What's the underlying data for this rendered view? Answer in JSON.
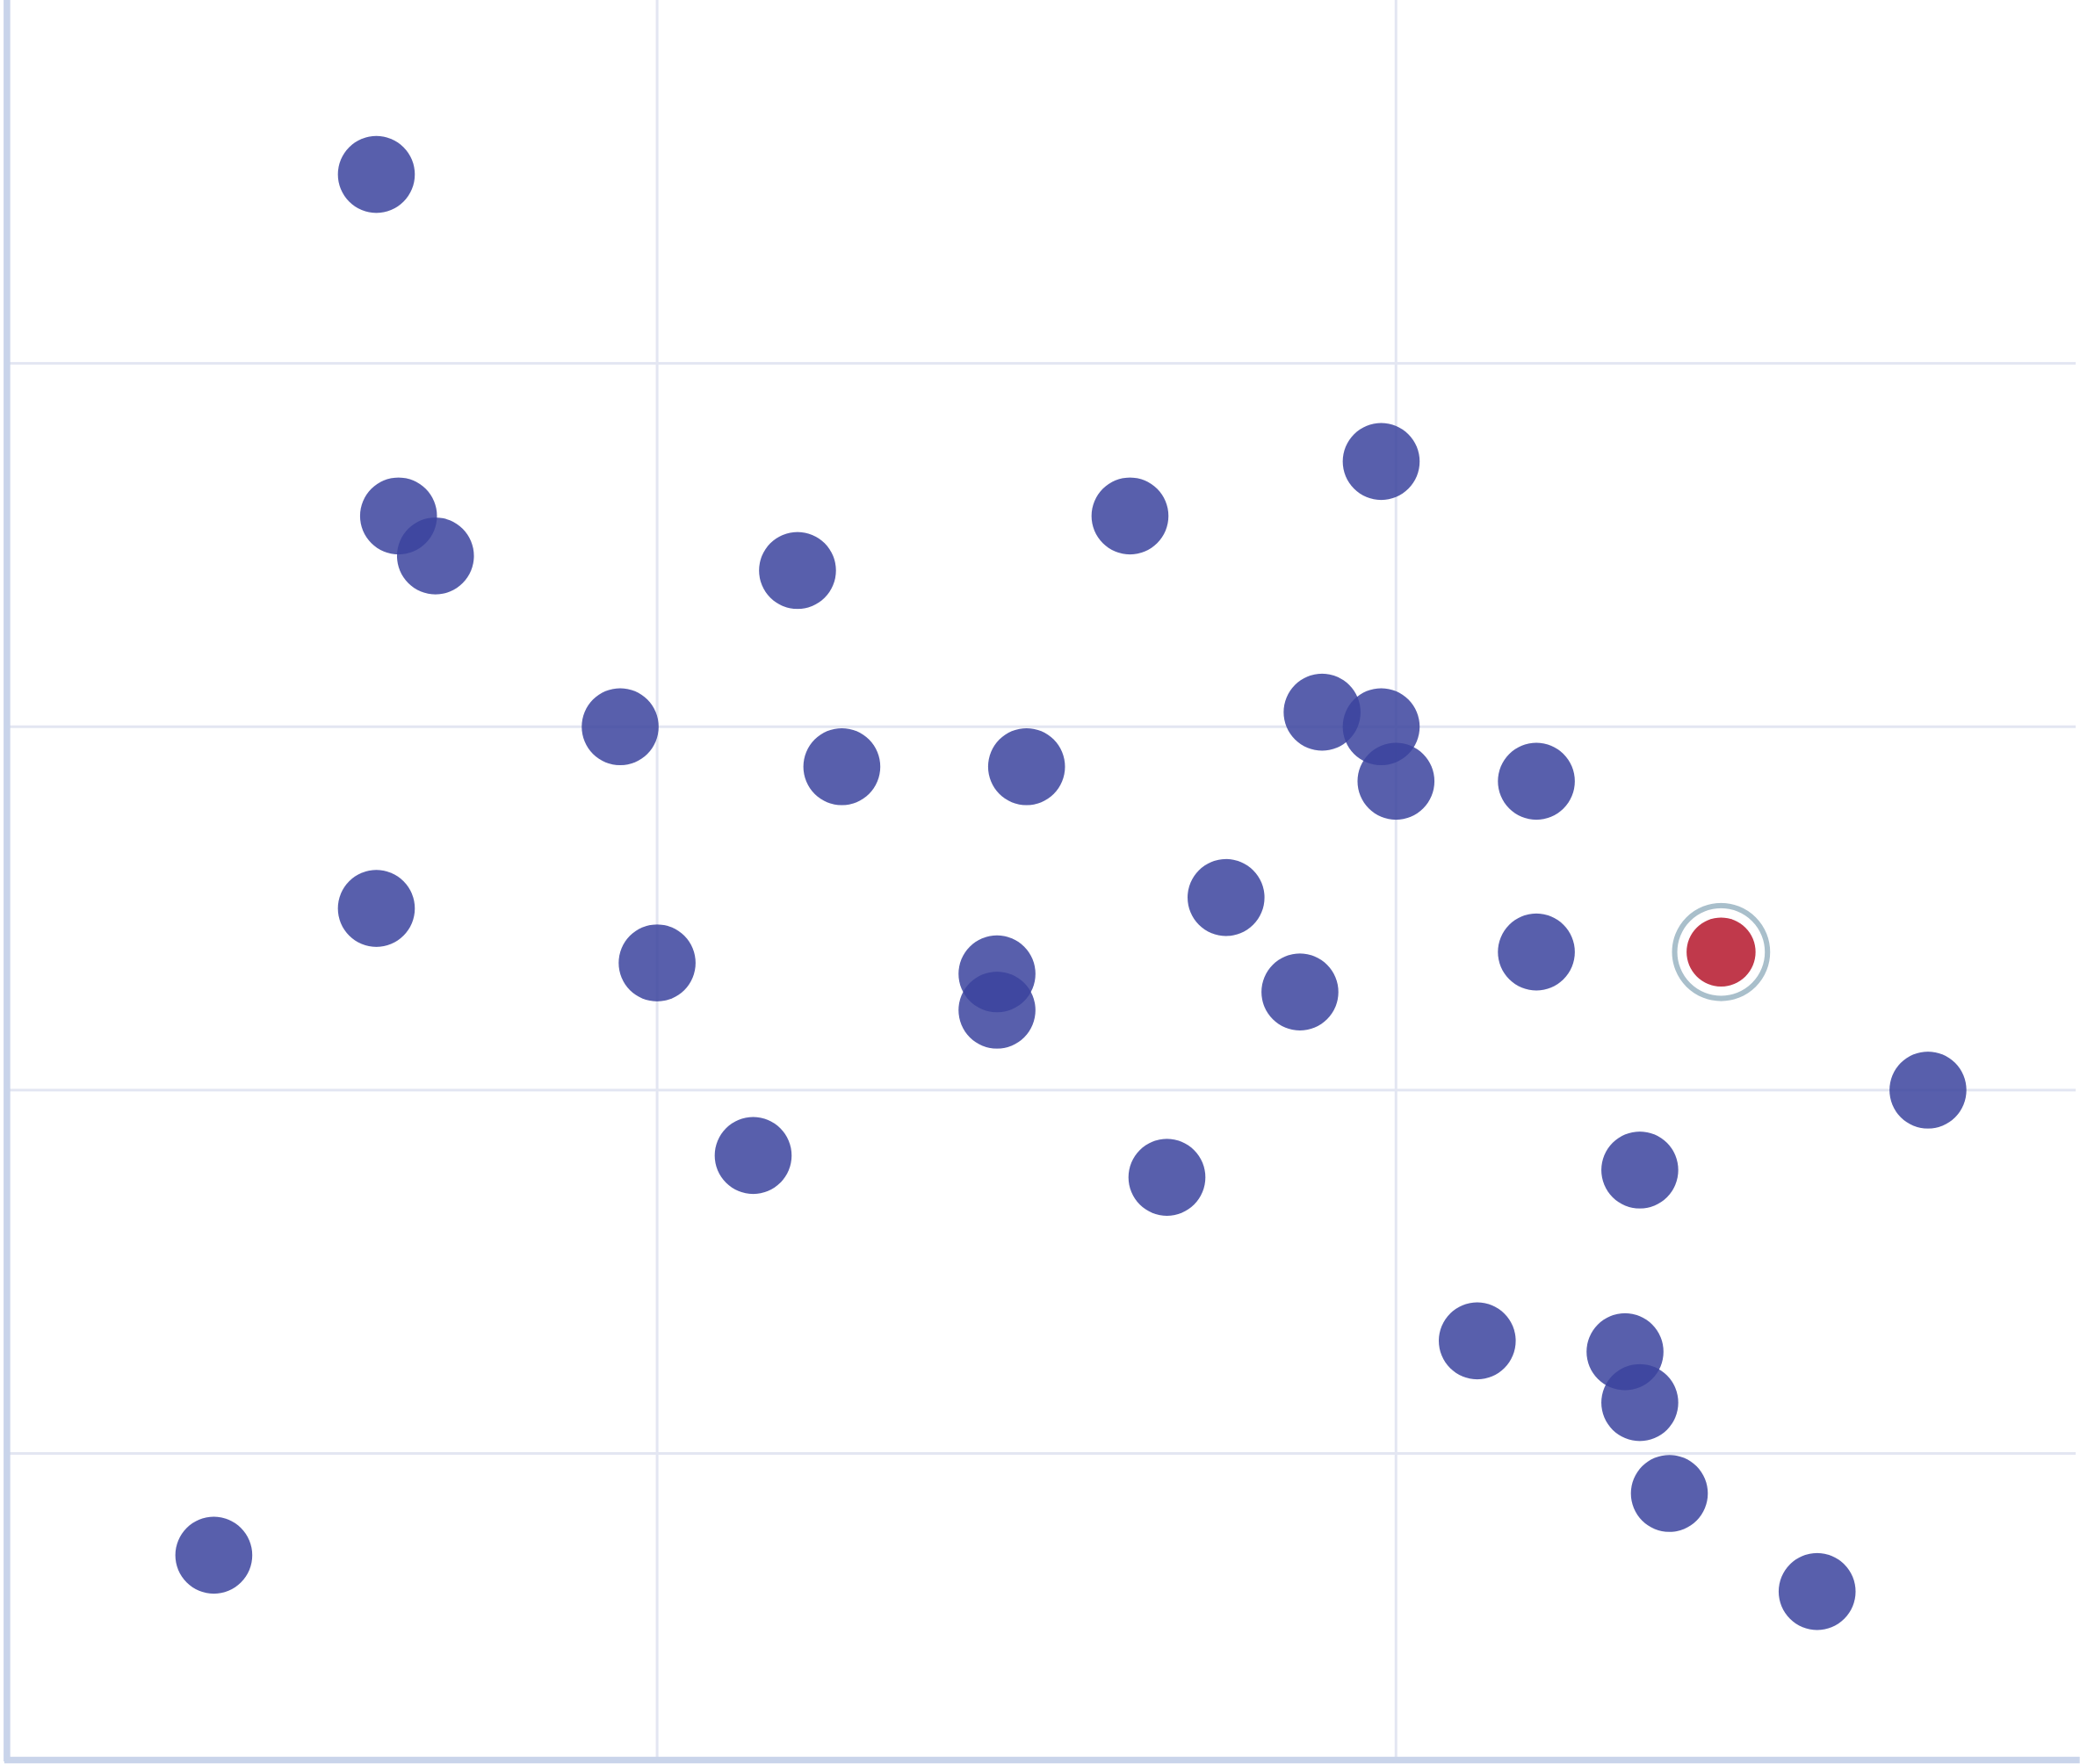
{
  "chart_data": {
    "type": "scatter",
    "title": "",
    "xlabel": "",
    "ylabel": "",
    "xlim": [
      0.12,
      2.92
    ],
    "ylim": [
      0.16,
      5.0
    ],
    "grid": true,
    "x_gridlines": [
      1,
      2
    ],
    "y_gridlines": [
      1,
      2,
      3,
      4
    ],
    "colors": {
      "point": "#3b439e",
      "highlight": "#c0394b",
      "highlight_ring": "#a9bfcb",
      "grid": "#e3e6f2",
      "axis": "#c9d4ea"
    },
    "points": [
      {
        "x": 0.62,
        "y": 4.52
      },
      {
        "x": 0.65,
        "y": 3.58
      },
      {
        "x": 0.7,
        "y": 3.47
      },
      {
        "x": 1.19,
        "y": 3.43
      },
      {
        "x": 1.64,
        "y": 3.58
      },
      {
        "x": 1.98,
        "y": 3.73
      },
      {
        "x": 0.95,
        "y": 3.0
      },
      {
        "x": 1.25,
        "y": 2.89
      },
      {
        "x": 1.5,
        "y": 2.89
      },
      {
        "x": 1.9,
        "y": 3.04
      },
      {
        "x": 1.98,
        "y": 3.0
      },
      {
        "x": 2.0,
        "y": 2.85
      },
      {
        "x": 2.19,
        "y": 2.85
      },
      {
        "x": 0.62,
        "y": 2.5
      },
      {
        "x": 1.0,
        "y": 2.35
      },
      {
        "x": 1.46,
        "y": 2.32
      },
      {
        "x": 1.46,
        "y": 2.22
      },
      {
        "x": 1.77,
        "y": 2.53
      },
      {
        "x": 1.87,
        "y": 2.27
      },
      {
        "x": 2.19,
        "y": 2.38
      },
      {
        "x": 2.44,
        "y": 2.38,
        "highlighted": true
      },
      {
        "x": 2.72,
        "y": 2.0
      },
      {
        "x": 1.13,
        "y": 1.82
      },
      {
        "x": 1.69,
        "y": 1.76
      },
      {
        "x": 2.33,
        "y": 1.78
      },
      {
        "x": 2.11,
        "y": 1.31
      },
      {
        "x": 2.31,
        "y": 1.28
      },
      {
        "x": 2.33,
        "y": 1.14
      },
      {
        "x": 2.37,
        "y": 0.89
      },
      {
        "x": 0.4,
        "y": 0.72
      },
      {
        "x": 2.57,
        "y": 0.62
      }
    ]
  }
}
